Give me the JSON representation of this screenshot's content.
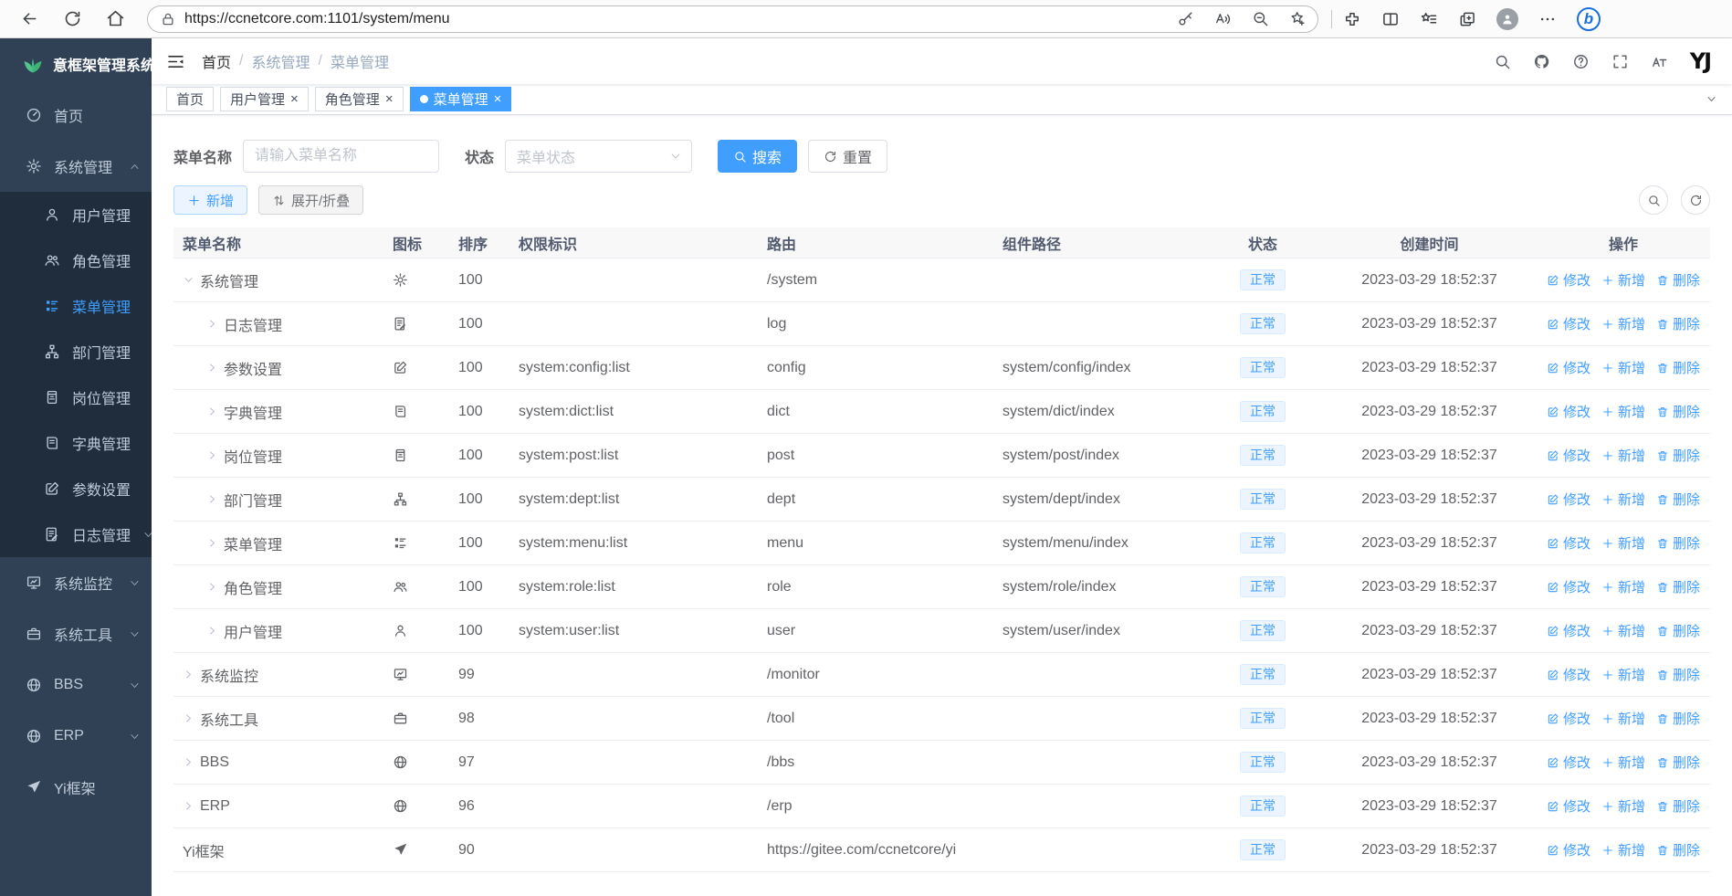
{
  "browser": {
    "url": "https://ccnetcore.com:1101/system/menu",
    "left_icons": [
      "back",
      "refresh",
      "home"
    ],
    "address_icons": [
      "key",
      "read-aloud",
      "zoom-out",
      "add-favorite"
    ],
    "right_icons": [
      "extensions",
      "split-screen",
      "favorites-bar",
      "collections",
      "profile",
      "ellipsis",
      "copilot"
    ]
  },
  "app": {
    "title": "意框架管理系统"
  },
  "sidebar": {
    "items": [
      {
        "label": "首页",
        "icon": "dashboard",
        "type": "leaf"
      },
      {
        "label": "系统管理",
        "icon": "gear",
        "type": "parent",
        "state": "expanded",
        "children": [
          {
            "label": "用户管理",
            "icon": "user"
          },
          {
            "label": "角色管理",
            "icon": "users"
          },
          {
            "label": "菜单管理",
            "icon": "menu-tree",
            "active": true
          },
          {
            "label": "部门管理",
            "icon": "org-tree"
          },
          {
            "label": "岗位管理",
            "icon": "badge"
          },
          {
            "label": "字典管理",
            "icon": "book"
          },
          {
            "label": "参数设置",
            "icon": "edit"
          },
          {
            "label": "日志管理",
            "icon": "log",
            "submenu": true
          }
        ]
      },
      {
        "label": "系统监控",
        "icon": "monitor",
        "type": "parent",
        "state": "collapsed"
      },
      {
        "label": "系统工具",
        "icon": "toolbox",
        "type": "parent",
        "state": "collapsed"
      },
      {
        "label": "BBS",
        "icon": "globe",
        "type": "parent",
        "state": "collapsed"
      },
      {
        "label": "ERP",
        "icon": "globe",
        "type": "parent",
        "state": "collapsed"
      },
      {
        "label": "Yi框架",
        "icon": "guide",
        "type": "leaf"
      }
    ]
  },
  "navbar": {
    "right_icons": [
      "search",
      "github",
      "question",
      "fullscreen",
      "text-size"
    ],
    "logo_text": "YJ"
  },
  "breadcrumb": {
    "items": [
      "首页",
      "系统管理",
      "菜单管理"
    ],
    "separator": "/"
  },
  "tabs": [
    {
      "label": "首页",
      "active": false,
      "closable": false
    },
    {
      "label": "用户管理",
      "active": false,
      "closable": true
    },
    {
      "label": "角色管理",
      "active": false,
      "closable": true
    },
    {
      "label": "菜单管理",
      "active": true,
      "closable": true
    }
  ],
  "filters": {
    "name_label": "菜单名称",
    "name_placeholder": "请输入菜单名称",
    "status_label": "状态",
    "status_placeholder": "菜单状态",
    "search_label": "搜索",
    "reset_label": "重置"
  },
  "toolbar": {
    "add_label": "新增",
    "expand_label": "展开/折叠"
  },
  "table": {
    "headers": [
      "菜单名称",
      "图标",
      "排序",
      "权限标识",
      "路由",
      "组件路径",
      "状态",
      "创建时间",
      "操作"
    ],
    "action_edit": "修改",
    "action_add": "新增",
    "action_delete": "删除",
    "rows": [
      {
        "name": "系统管理",
        "icon": "gear",
        "sort": "100",
        "perms": "",
        "route": "/system",
        "component": "",
        "status": "正常",
        "time": "2023-03-29 18:52:37",
        "caret": "down",
        "level": 0
      },
      {
        "name": "日志管理",
        "icon": "log",
        "sort": "100",
        "perms": "",
        "route": "log",
        "component": "",
        "status": "正常",
        "time": "2023-03-29 18:52:37",
        "caret": "right",
        "level": 1
      },
      {
        "name": "参数设置",
        "icon": "edit",
        "sort": "100",
        "perms": "system:config:list",
        "route": "config",
        "component": "system/config/index",
        "status": "正常",
        "time": "2023-03-29 18:52:37",
        "caret": "right",
        "level": 1
      },
      {
        "name": "字典管理",
        "icon": "book",
        "sort": "100",
        "perms": "system:dict:list",
        "route": "dict",
        "component": "system/dict/index",
        "status": "正常",
        "time": "2023-03-29 18:52:37",
        "caret": "right",
        "level": 1
      },
      {
        "name": "岗位管理",
        "icon": "badge",
        "sort": "100",
        "perms": "system:post:list",
        "route": "post",
        "component": "system/post/index",
        "status": "正常",
        "time": "2023-03-29 18:52:37",
        "caret": "right",
        "level": 1
      },
      {
        "name": "部门管理",
        "icon": "org-tree",
        "sort": "100",
        "perms": "system:dept:list",
        "route": "dept",
        "component": "system/dept/index",
        "status": "正常",
        "time": "2023-03-29 18:52:37",
        "caret": "right",
        "level": 1
      },
      {
        "name": "菜单管理",
        "icon": "menu-tree",
        "sort": "100",
        "perms": "system:menu:list",
        "route": "menu",
        "component": "system/menu/index",
        "status": "正常",
        "time": "2023-03-29 18:52:37",
        "caret": "right",
        "level": 1
      },
      {
        "name": "角色管理",
        "icon": "users",
        "sort": "100",
        "perms": "system:role:list",
        "route": "role",
        "component": "system/role/index",
        "status": "正常",
        "time": "2023-03-29 18:52:37",
        "caret": "right",
        "level": 1
      },
      {
        "name": "用户管理",
        "icon": "user",
        "sort": "100",
        "perms": "system:user:list",
        "route": "user",
        "component": "system/user/index",
        "status": "正常",
        "time": "2023-03-29 18:52:37",
        "caret": "right",
        "level": 1
      },
      {
        "name": "系统监控",
        "icon": "monitor",
        "sort": "99",
        "perms": "",
        "route": "/monitor",
        "component": "",
        "status": "正常",
        "time": "2023-03-29 18:52:37",
        "caret": "right",
        "level": 0
      },
      {
        "name": "系统工具",
        "icon": "toolbox",
        "sort": "98",
        "perms": "",
        "route": "/tool",
        "component": "",
        "status": "正常",
        "time": "2023-03-29 18:52:37",
        "caret": "right",
        "level": 0
      },
      {
        "name": "BBS",
        "icon": "globe",
        "sort": "97",
        "perms": "",
        "route": "/bbs",
        "component": "",
        "status": "正常",
        "time": "2023-03-29 18:52:37",
        "caret": "right",
        "level": 0
      },
      {
        "name": "ERP",
        "icon": "globe",
        "sort": "96",
        "perms": "",
        "route": "/erp",
        "component": "",
        "status": "正常",
        "time": "2023-03-29 18:52:37",
        "caret": "right",
        "level": 0
      },
      {
        "name": "Yi框架",
        "icon": "guide",
        "sort": "90",
        "perms": "",
        "route": "https://gitee.com/ccnetcore/yi",
        "component": "",
        "status": "正常",
        "time": "2023-03-29 18:52:37",
        "caret": "none",
        "level": 0
      }
    ]
  }
}
